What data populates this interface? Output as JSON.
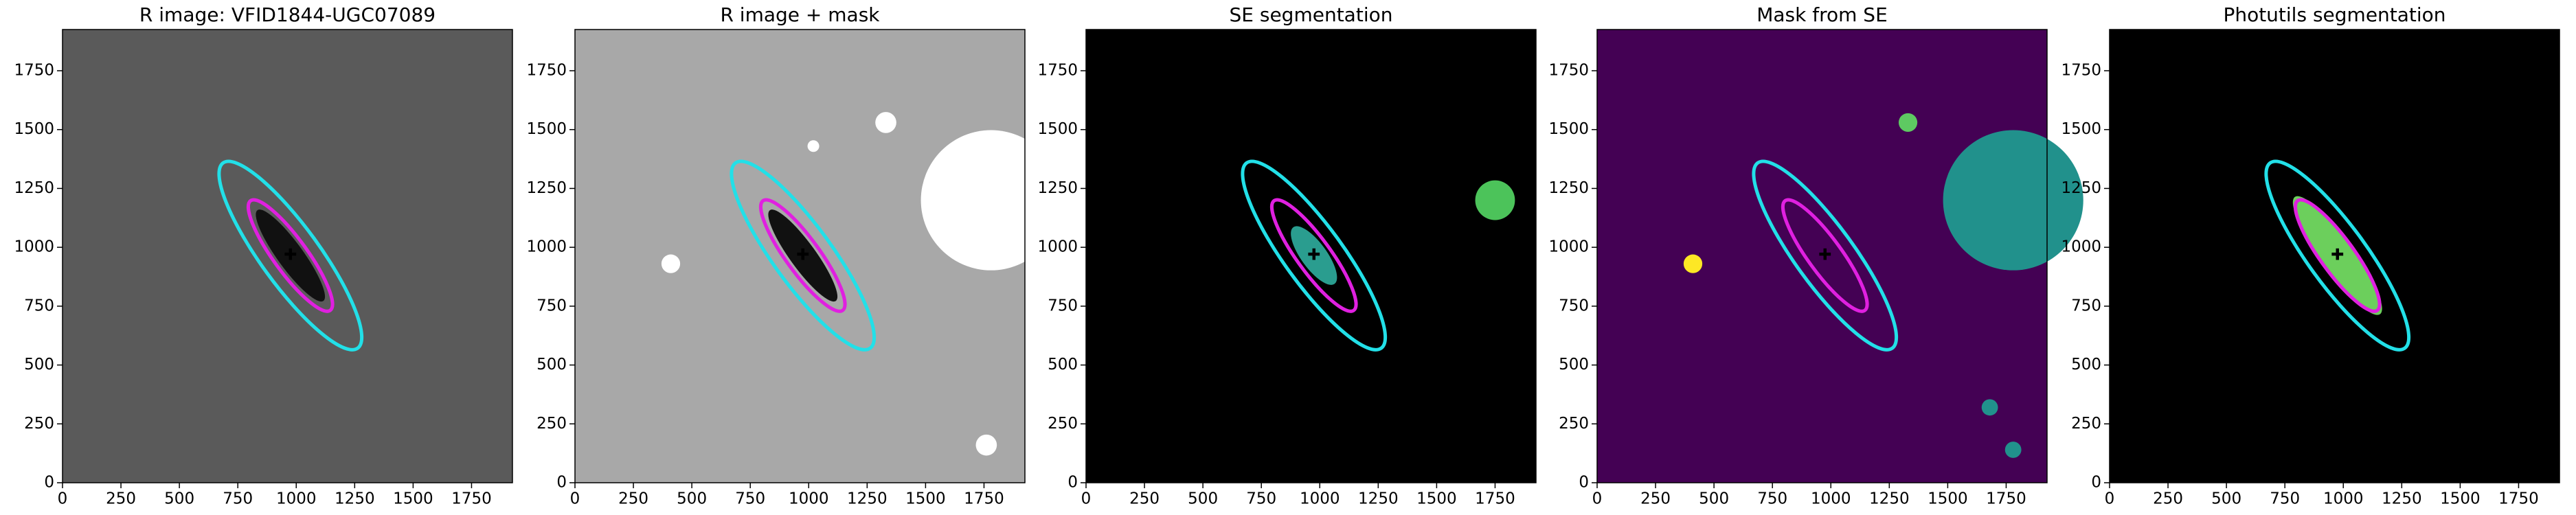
{
  "chart_data": [
    {
      "type": "image",
      "title": "R image: VFID1844-UGC07089",
      "background": "#5a5a5a",
      "xlim": [
        0,
        1925
      ],
      "ylim": [
        0,
        1925
      ],
      "xticks": [
        0,
        250,
        500,
        750,
        1000,
        1250,
        1500,
        1750
      ],
      "yticks": [
        0,
        250,
        500,
        750,
        1000,
        1250,
        1500,
        1750
      ]
    },
    {
      "type": "image",
      "title": "R image + mask",
      "background": "#a8a8a8",
      "xlim": [
        0,
        1925
      ],
      "ylim": [
        0,
        1925
      ],
      "xticks": [
        0,
        250,
        500,
        750,
        1000,
        1250,
        1500,
        1750
      ],
      "yticks": [
        0,
        250,
        500,
        750,
        1000,
        1250,
        1500,
        1750
      ]
    },
    {
      "type": "image",
      "title": "SE segmentation",
      "background": "#000000",
      "xlim": [
        0,
        1925
      ],
      "ylim": [
        0,
        1925
      ],
      "xticks": [
        0,
        250,
        500,
        750,
        1000,
        1250,
        1500,
        1750
      ],
      "yticks": [
        0,
        250,
        500,
        750,
        1000,
        1250,
        1500,
        1750
      ]
    },
    {
      "type": "image",
      "title": "Mask from SE",
      "background": "#440154",
      "xlim": [
        0,
        1925
      ],
      "ylim": [
        0,
        1925
      ],
      "xticks": [
        0,
        250,
        500,
        750,
        1000,
        1250,
        1500,
        1750
      ],
      "yticks": [
        0,
        250,
        500,
        750,
        1000,
        1250,
        1500,
        1750
      ]
    },
    {
      "type": "image",
      "title": "Photutils segmentation",
      "background": "#000000",
      "xlim": [
        0,
        1925
      ],
      "ylim": [
        0,
        1925
      ],
      "xticks": [
        0,
        250,
        500,
        750,
        1000,
        1250,
        1500,
        1750
      ],
      "yticks": [
        0,
        250,
        500,
        750,
        1000,
        1250,
        1500,
        1750
      ]
    }
  ]
}
